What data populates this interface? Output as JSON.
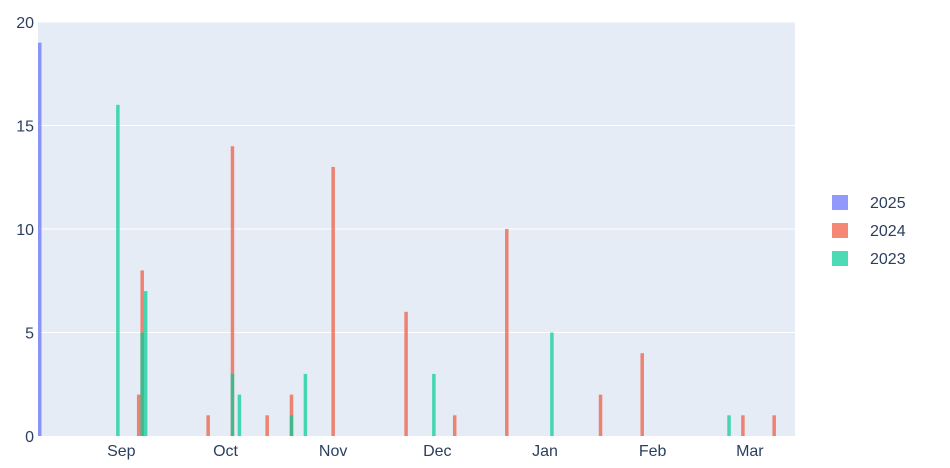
{
  "chart_data": {
    "type": "bar",
    "x_axis": {
      "type": "date",
      "range": [
        "2024-08-08",
        "2025-03-14"
      ],
      "ticks": [
        {
          "date": "2024-09-01",
          "label": "Sep"
        },
        {
          "date": "2024-10-01",
          "label": "Oct"
        },
        {
          "date": "2024-11-01",
          "label": "Nov"
        },
        {
          "date": "2024-12-01",
          "label": "Dec"
        },
        {
          "date": "2025-01-01",
          "label": "Jan"
        },
        {
          "date": "2025-02-01",
          "label": "Feb"
        },
        {
          "date": "2025-03-01",
          "label": "Mar"
        }
      ]
    },
    "y_axis": {
      "range": [
        0,
        20
      ],
      "ticks": [
        0,
        5,
        10,
        15,
        20
      ]
    },
    "grid": true,
    "barmode": "overlay",
    "legend_position": "right",
    "series": [
      {
        "name": "2025",
        "color": "#636efa",
        "points": [
          {
            "date": "2024-08-08",
            "value": 19
          }
        ]
      },
      {
        "name": "2024",
        "color": "#ef553b",
        "points": [
          {
            "date": "2024-08-30",
            "value": 0
          },
          {
            "date": "2024-09-06",
            "value": 2
          },
          {
            "date": "2024-09-07",
            "value": 8
          },
          {
            "date": "2024-09-26",
            "value": 1
          },
          {
            "date": "2024-10-03",
            "value": 14
          },
          {
            "date": "2024-10-13",
            "value": 1
          },
          {
            "date": "2024-10-20",
            "value": 2
          },
          {
            "date": "2024-11-01",
            "value": 13
          },
          {
            "date": "2024-11-22",
            "value": 6
          },
          {
            "date": "2024-12-06",
            "value": 1
          },
          {
            "date": "2024-12-21",
            "value": 10
          },
          {
            "date": "2025-01-17",
            "value": 2
          },
          {
            "date": "2025-01-29",
            "value": 4
          },
          {
            "date": "2025-02-27",
            "value": 1
          },
          {
            "date": "2025-03-08",
            "value": 1
          }
        ]
      },
      {
        "name": "2023",
        "color": "#00cc96",
        "points": [
          {
            "date": "2024-08-31",
            "value": 16
          },
          {
            "date": "2024-09-07",
            "value": 5
          },
          {
            "date": "2024-09-08",
            "value": 7
          },
          {
            "date": "2024-10-03",
            "value": 3
          },
          {
            "date": "2024-10-05",
            "value": 2
          },
          {
            "date": "2024-10-20",
            "value": 1
          },
          {
            "date": "2024-10-24",
            "value": 3
          },
          {
            "date": "2024-11-30",
            "value": 3
          },
          {
            "date": "2025-01-03",
            "value": 5
          },
          {
            "date": "2025-02-23",
            "value": 1
          }
        ]
      }
    ]
  }
}
